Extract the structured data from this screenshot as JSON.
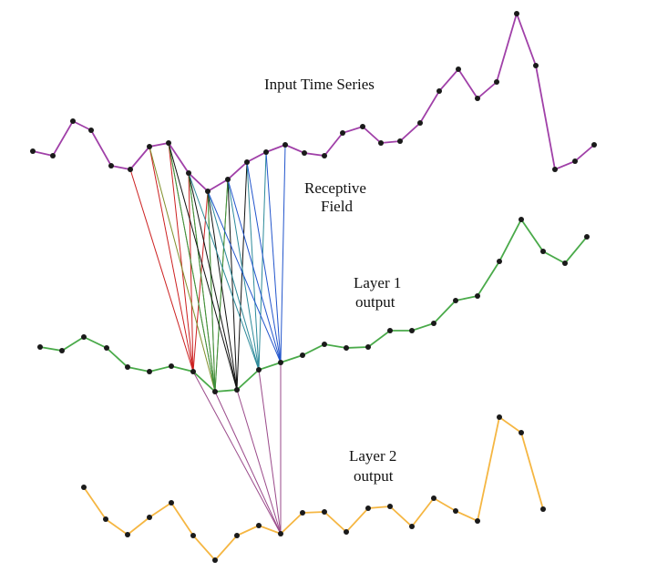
{
  "labels": {
    "input": "Input Time Series",
    "receptive_line1": "Receptive",
    "receptive_line2": "Field",
    "layer1_line1": "Layer 1",
    "layer1_line2": "output",
    "layer2_line1": "Layer 2",
    "layer2_line2": "output"
  },
  "colors": {
    "input_series": "#a040a8",
    "layer1_series": "#4aaa4a",
    "layer2_series": "#f5b642",
    "point": "#1a1a1a",
    "connector_red": "#cc1f1f",
    "connector_olive": "#7f8f2a",
    "connector_green": "#3c8f3c",
    "connector_black": "#111111",
    "connector_teal": "#2d8a9a",
    "connector_blue": "#2255cc",
    "connector_purple": "#9a4a8a"
  }
}
